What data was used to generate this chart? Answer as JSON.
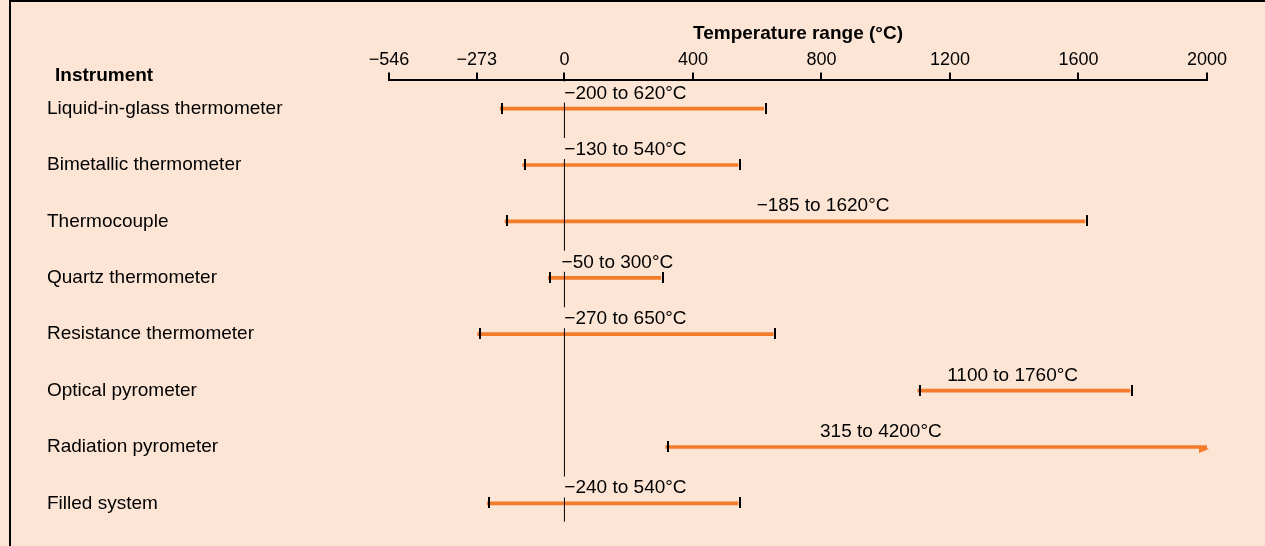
{
  "chart_data": {
    "type": "bar",
    "orientation": "horizontal",
    "xlabel": "Temperature range (°C)",
    "ylabel": "Instrument",
    "categories": [
      "Liquid-in-glass thermometer",
      "Bimetallic thermometer",
      "Thermocouple",
      "Quartz thermometer",
      "Resistance thermometer",
      "Optical pyrometer",
      "Radiation pyrometer",
      "Filled system"
    ],
    "base": [
      -200,
      -130,
      -185,
      -50,
      -270,
      1100,
      315,
      -240
    ],
    "values": [
      820,
      670,
      1805,
      350,
      920,
      660,
      3885,
      780
    ],
    "annotations": [
      {
        "text": "−200 to 620°C",
        "x": 190,
        "y": "Liquid-in-glass thermometer"
      },
      {
        "text": "−130 to 540°C",
        "x": 190,
        "y": "Bimetallic thermometer"
      },
      {
        "text": "−185 to 1620°C",
        "x": 805,
        "y": "Thermocouple"
      },
      {
        "text": "−50 to 300°C",
        "x": 165,
        "y": "Quartz thermometer"
      },
      {
        "text": "−270 to 650°C",
        "x": 190,
        "y": "Resistance thermometer"
      },
      {
        "text": "1100 to 1760°C",
        "x": 1395,
        "y": "Optical pyrometer"
      },
      {
        "text": "315 to 4200°C",
        "x": 985,
        "y": "Radiation pyrometer"
      },
      {
        "text": "−240 to 540°C",
        "x": 190,
        "y": "Filled system"
      }
    ],
    "color": "#f47b2a",
    "xlim": [
      -546,
      2000
    ],
    "xticks": [
      {
        "value": -546,
        "label": "−546"
      },
      {
        "value": -273,
        "label": "−273"
      },
      0,
      400,
      800,
      1200,
      1600,
      2000
    ],
    "ref_lines": [
      {
        "axis": "x",
        "value": 0,
        "color": "#000000"
      }
    ],
    "grid": false,
    "legend": false
  }
}
